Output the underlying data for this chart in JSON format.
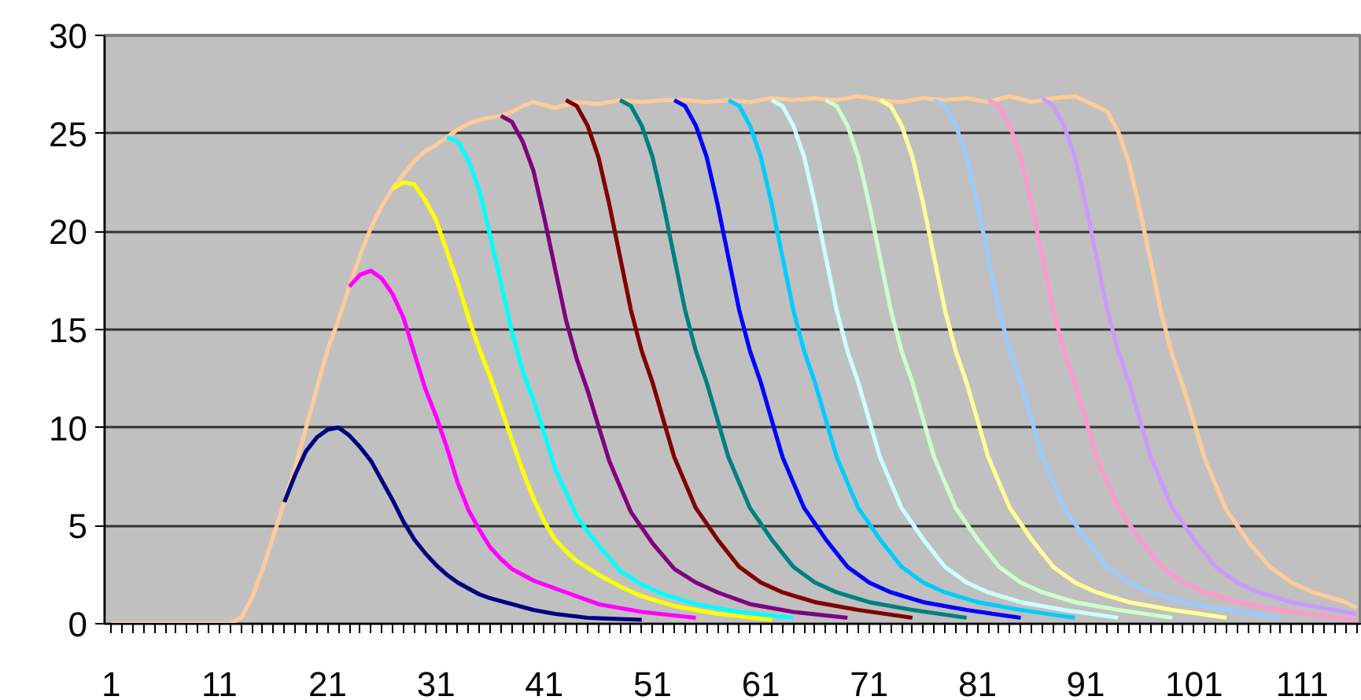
{
  "chart_data": {
    "type": "line",
    "xlim": [
      0.4,
      116.5
    ],
    "xticks": [
      1,
      11,
      21,
      31,
      41,
      51,
      61,
      71,
      81,
      91,
      101,
      111
    ],
    "ylim": [
      0,
      30
    ],
    "yticks": [
      0,
      5,
      10,
      15,
      20,
      25,
      30
    ],
    "grid": "y",
    "marker": "none",
    "line_style": "solid",
    "series": [
      {
        "color": "#ffcc99",
        "x": [
          1,
          12,
          13,
          14,
          15,
          16,
          17,
          18,
          19,
          20,
          21,
          22,
          23,
          24,
          25,
          26,
          27,
          28,
          29,
          30,
          31,
          32,
          33,
          34,
          35,
          36,
          37,
          38,
          39,
          40,
          42,
          44,
          46,
          48,
          50,
          52,
          54,
          56,
          58,
          60,
          62,
          64,
          66,
          68,
          70,
          72,
          74,
          76,
          78,
          80,
          82,
          84,
          86,
          88,
          90,
          92,
          93,
          94,
          95,
          96,
          97,
          98,
          99,
          100,
          101,
          102,
          103,
          104,
          105,
          106,
          108,
          110,
          112,
          115,
          116
        ],
        "values": [
          0,
          0,
          0.3,
          1.3,
          2.8,
          4.5,
          6.2,
          8,
          10,
          12,
          14,
          15.5,
          17.2,
          18.8,
          20.2,
          21.3,
          22.2,
          22.9,
          23.6,
          24.1,
          24.4,
          24.8,
          25.2,
          25.5,
          25.7,
          25.8,
          25.9,
          26.1,
          26.4,
          26.6,
          26.3,
          26.6,
          26.5,
          26.7,
          26.6,
          26.7,
          26.7,
          26.6,
          26.7,
          26.6,
          26.8,
          26.7,
          26.8,
          26.7,
          26.9,
          26.7,
          26.6,
          26.8,
          26.7,
          26.8,
          26.6,
          26.9,
          26.6,
          26.8,
          26.9,
          26.4,
          26.1,
          25.1,
          23.5,
          21.1,
          18.5,
          15.8,
          13.7,
          12.1,
          10.3,
          8.4,
          7.1,
          5.8,
          5,
          4.2,
          2.9,
          2.1,
          1.6,
          1.1,
          0.8
        ]
      },
      {
        "color": "#000080",
        "x": [
          17,
          18,
          19,
          20,
          21,
          22,
          23,
          24,
          25,
          26,
          27,
          28,
          29,
          30,
          31,
          32,
          33,
          34,
          35,
          36,
          38,
          40,
          42,
          45,
          50
        ],
        "values": [
          6.2,
          7.6,
          8.8,
          9.5,
          9.9,
          10,
          9.6,
          9,
          8.3,
          7.3,
          6.3,
          5.2,
          4.3,
          3.6,
          3,
          2.5,
          2.1,
          1.8,
          1.5,
          1.3,
          1,
          0.7,
          0.5,
          0.3,
          0.2
        ]
      },
      {
        "color": "#ff00ff",
        "x": [
          23,
          24,
          25,
          26,
          27,
          28,
          29,
          30,
          31,
          32,
          33,
          34,
          35,
          36,
          37,
          38,
          40,
          42,
          44,
          46,
          50,
          55
        ],
        "values": [
          17.2,
          17.8,
          18,
          17.6,
          16.8,
          15.6,
          13.8,
          12,
          10.6,
          9,
          7.2,
          5.8,
          4.8,
          3.9,
          3.3,
          2.8,
          2.2,
          1.8,
          1.4,
          1,
          0.6,
          0.3
        ]
      },
      {
        "color": "#ffff00",
        "x": [
          27,
          28,
          29,
          30,
          31,
          32,
          33,
          34,
          35,
          36,
          37,
          38,
          39,
          40,
          41,
          42,
          43,
          44,
          46,
          48,
          50,
          53,
          57,
          62
        ],
        "values": [
          22.2,
          22.5,
          22.4,
          21.6,
          20.6,
          19,
          17.4,
          15.6,
          14,
          12.6,
          11,
          9.4,
          7.8,
          6.4,
          5.2,
          4.3,
          3.7,
          3.2,
          2.5,
          1.9,
          1.4,
          0.9,
          0.5,
          0.2
        ]
      },
      {
        "color": "#00ffff",
        "x": [
          32,
          33,
          34,
          35,
          36,
          37,
          38,
          39,
          40,
          41,
          42,
          43,
          44,
          45,
          46,
          48,
          50,
          52,
          55,
          59,
          64
        ],
        "values": [
          24.8,
          24.6,
          23.6,
          22.1,
          19.8,
          17.4,
          14.9,
          12.9,
          11.4,
          9.7,
          7.9,
          6.7,
          5.5,
          4.7,
          4,
          2.7,
          2,
          1.5,
          1,
          0.6,
          0.3
        ]
      },
      {
        "color": "#800080",
        "x": [
          37,
          38,
          39,
          40,
          41,
          42,
          43,
          44,
          45,
          46,
          47,
          48,
          49,
          50,
          51,
          53,
          55,
          57,
          60,
          64,
          69
        ],
        "values": [
          25.9,
          25.6,
          24.6,
          23.1,
          20.7,
          18.1,
          15.5,
          13.5,
          11.9,
          10.1,
          8.3,
          7,
          5.7,
          4.9,
          4.1,
          2.8,
          2.1,
          1.6,
          1,
          0.6,
          0.3
        ]
      },
      {
        "color": "#800000",
        "x": [
          43,
          44,
          45,
          46,
          47,
          48,
          49,
          50,
          51,
          52,
          53,
          54,
          55,
          56,
          57,
          59,
          61,
          63,
          66,
          70,
          75
        ],
        "values": [
          26.7,
          26.4,
          25.4,
          23.8,
          21.4,
          18.7,
          16,
          13.9,
          12.3,
          10.4,
          8.5,
          7.2,
          5.9,
          5.1,
          4.3,
          2.9,
          2.1,
          1.6,
          1.1,
          0.7,
          0.3
        ]
      },
      {
        "color": "#008080",
        "x": [
          48,
          49,
          50,
          51,
          52,
          53,
          54,
          55,
          56,
          57,
          58,
          59,
          60,
          61,
          62,
          64,
          66,
          68,
          71,
          75,
          80
        ],
        "values": [
          26.7,
          26.4,
          25.4,
          23.8,
          21.4,
          18.7,
          16,
          13.9,
          12.3,
          10.4,
          8.5,
          7.2,
          5.9,
          5.1,
          4.3,
          2.9,
          2.1,
          1.6,
          1.1,
          0.7,
          0.3
        ]
      },
      {
        "color": "#0000ff",
        "x": [
          53,
          54,
          55,
          56,
          57,
          58,
          59,
          60,
          61,
          62,
          63,
          64,
          65,
          66,
          67,
          69,
          71,
          73,
          76,
          80,
          85
        ],
        "values": [
          26.7,
          26.4,
          25.4,
          23.8,
          21.4,
          18.7,
          16,
          13.9,
          12.3,
          10.4,
          8.5,
          7.2,
          5.9,
          5.1,
          4.3,
          2.9,
          2.1,
          1.6,
          1.1,
          0.7,
          0.3
        ]
      },
      {
        "color": "#00ccff",
        "x": [
          58,
          59,
          60,
          61,
          62,
          63,
          64,
          65,
          66,
          67,
          68,
          69,
          70,
          71,
          72,
          74,
          76,
          78,
          81,
          85,
          90
        ],
        "values": [
          26.7,
          26.4,
          25.4,
          23.8,
          21.4,
          18.7,
          16,
          13.9,
          12.3,
          10.4,
          8.5,
          7.2,
          5.9,
          5.1,
          4.3,
          2.9,
          2.1,
          1.6,
          1.1,
          0.7,
          0.3
        ]
      },
      {
        "color": "#ccffff",
        "x": [
          62,
          63,
          64,
          65,
          66,
          67,
          68,
          69,
          70,
          71,
          72,
          73,
          74,
          75,
          76,
          78,
          80,
          82,
          85,
          89,
          94
        ],
        "values": [
          26.7,
          26.4,
          25.4,
          23.8,
          21.4,
          18.7,
          16,
          13.9,
          12.3,
          10.4,
          8.5,
          7.2,
          5.9,
          5.1,
          4.3,
          2.9,
          2.1,
          1.6,
          1.1,
          0.7,
          0.3
        ]
      },
      {
        "color": "#ccffcc",
        "x": [
          67,
          68,
          69,
          70,
          71,
          72,
          73,
          74,
          75,
          76,
          77,
          78,
          79,
          80,
          81,
          83,
          85,
          87,
          90,
          94,
          99
        ],
        "values": [
          26.7,
          26.4,
          25.4,
          23.8,
          21.4,
          18.7,
          16,
          13.9,
          12.3,
          10.4,
          8.5,
          7.2,
          5.9,
          5.1,
          4.3,
          2.9,
          2.1,
          1.6,
          1.1,
          0.7,
          0.3
        ]
      },
      {
        "color": "#ffff99",
        "x": [
          72,
          73,
          74,
          75,
          76,
          77,
          78,
          79,
          80,
          81,
          82,
          83,
          84,
          85,
          86,
          88,
          90,
          92,
          95,
          99,
          104
        ],
        "values": [
          26.7,
          26.4,
          25.4,
          23.8,
          21.4,
          18.7,
          16,
          13.9,
          12.3,
          10.4,
          8.5,
          7.2,
          5.9,
          5.1,
          4.3,
          2.9,
          2.1,
          1.6,
          1.1,
          0.7,
          0.3
        ]
      },
      {
        "color": "#99ccff",
        "x": [
          77,
          78,
          79,
          80,
          81,
          82,
          83,
          84,
          85,
          86,
          87,
          88,
          89,
          90,
          91,
          93,
          95,
          97,
          100,
          104,
          109
        ],
        "values": [
          26.7,
          26.4,
          25.4,
          23.8,
          21.4,
          18.7,
          16,
          13.9,
          12.3,
          10.4,
          8.5,
          7.2,
          5.9,
          5.1,
          4.3,
          2.9,
          2.1,
          1.6,
          1.1,
          0.7,
          0.3
        ]
      },
      {
        "color": "#ff99cc",
        "x": [
          82,
          83,
          84,
          85,
          86,
          87,
          88,
          89,
          90,
          91,
          92,
          93,
          94,
          95,
          96,
          98,
          100,
          102,
          105,
          109,
          114,
          116
        ],
        "values": [
          26.7,
          26.4,
          25.4,
          23.8,
          21.4,
          18.7,
          16,
          13.9,
          12.3,
          10.4,
          8.5,
          7.2,
          5.9,
          5.1,
          4.3,
          2.9,
          2.1,
          1.6,
          1.1,
          0.7,
          0.3,
          0.2
        ]
      },
      {
        "color": "#cc99ff",
        "x": [
          87,
          88,
          89,
          90,
          91,
          92,
          93,
          94,
          95,
          96,
          97,
          98,
          99,
          100,
          101,
          103,
          105,
          107,
          110,
          114,
          116
        ],
        "values": [
          26.8,
          26.4,
          25.4,
          23.8,
          21.4,
          18.7,
          16,
          13.9,
          12.3,
          10.4,
          8.5,
          7.2,
          5.9,
          5.1,
          4.3,
          2.9,
          2.1,
          1.6,
          1.1,
          0.7,
          0.5
        ]
      }
    ]
  }
}
